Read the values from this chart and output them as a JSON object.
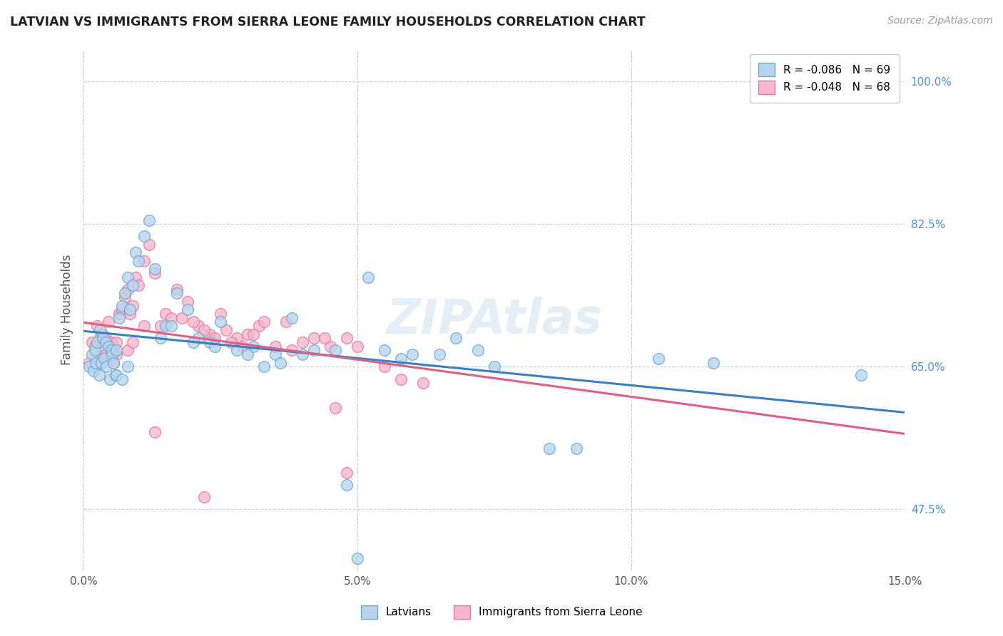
{
  "title": "LATVIAN VS IMMIGRANTS FROM SIERRA LEONE FAMILY HOUSEHOLDS CORRELATION CHART",
  "source": "Source: ZipAtlas.com",
  "ylabel": "Family Households",
  "xlim": [
    0.0,
    15.0
  ],
  "ylim": [
    40.0,
    104.0
  ],
  "xticks": [
    0.0,
    5.0,
    10.0,
    15.0
  ],
  "xticklabels": [
    "0.0%",
    "5.0%",
    "10.0%",
    "15.0%"
  ],
  "yticks": [
    47.5,
    65.0,
    82.5,
    100.0
  ],
  "yticklabels": [
    "47.5%",
    "65.0%",
    "82.5%",
    "100.0%"
  ],
  "latvian_color": "#b8d4ed",
  "sierra_leone_color": "#f4b8cc",
  "latvian_edge_color": "#6aaad4",
  "sierra_leone_edge_color": "#e87898",
  "latvian_line_color": "#3a7fc1",
  "sierra_leone_line_color": "#e06080",
  "background_color": "#ffffff",
  "grid_color": "#c0d0e0",
  "watermark_color": "#c8dff0",
  "latvian_x": [
    0.1,
    0.15,
    0.18,
    0.2,
    0.22,
    0.25,
    0.28,
    0.3,
    0.32,
    0.35,
    0.38,
    0.4,
    0.42,
    0.45,
    0.48,
    0.5,
    0.52,
    0.55,
    0.58,
    0.6,
    0.65,
    0.7,
    0.75,
    0.8,
    0.85,
    0.9,
    0.95,
    1.0,
    1.1,
    1.2,
    1.3,
    1.5,
    1.7,
    1.9,
    2.1,
    2.3,
    2.5,
    2.8,
    3.1,
    3.5,
    4.0,
    3.8,
    5.5,
    6.8,
    8.5,
    3.3,
    4.6,
    5.2,
    7.2,
    10.5,
    0.6,
    0.7,
    0.8,
    1.4,
    1.6,
    2.0,
    2.4,
    3.0,
    3.6,
    4.2,
    5.8,
    6.5,
    9.0,
    11.5,
    14.2,
    4.8,
    5.0,
    6.0,
    7.5
  ],
  "latvian_y": [
    65.0,
    66.5,
    64.5,
    67.0,
    65.5,
    68.0,
    64.0,
    69.5,
    65.5,
    68.5,
    66.0,
    68.0,
    65.0,
    67.5,
    63.5,
    67.0,
    66.5,
    65.5,
    64.0,
    67.0,
    71.0,
    72.5,
    74.0,
    76.0,
    72.0,
    75.0,
    79.0,
    78.0,
    81.0,
    83.0,
    77.0,
    70.0,
    74.0,
    72.0,
    68.5,
    68.0,
    70.5,
    67.0,
    67.5,
    66.5,
    66.5,
    71.0,
    67.0,
    68.5,
    55.0,
    65.0,
    67.0,
    76.0,
    67.0,
    66.0,
    64.0,
    63.5,
    65.0,
    68.5,
    70.0,
    68.0,
    67.5,
    66.5,
    65.5,
    67.0,
    66.0,
    66.5,
    55.0,
    65.5,
    64.0,
    50.5,
    41.5,
    66.5,
    65.0
  ],
  "sierra_leone_x": [
    0.1,
    0.15,
    0.2,
    0.25,
    0.28,
    0.3,
    0.32,
    0.35,
    0.38,
    0.4,
    0.42,
    0.45,
    0.5,
    0.52,
    0.55,
    0.6,
    0.65,
    0.7,
    0.75,
    0.8,
    0.85,
    0.9,
    0.95,
    1.0,
    1.1,
    1.2,
    1.3,
    1.5,
    1.7,
    1.9,
    2.1,
    2.3,
    2.5,
    2.8,
    3.0,
    3.2,
    3.5,
    3.8,
    4.0,
    4.5,
    2.0,
    1.4,
    1.6,
    2.2,
    2.7,
    3.3,
    4.2,
    5.0,
    0.6,
    0.8,
    1.8,
    2.6,
    3.7,
    4.8,
    5.5,
    6.2,
    2.4,
    3.1,
    4.4,
    5.8,
    0.9,
    1.1,
    2.9,
    4.6,
    0.55,
    1.3,
    2.2,
    4.8
  ],
  "sierra_leone_y": [
    65.5,
    68.0,
    67.5,
    70.0,
    66.0,
    68.5,
    65.5,
    69.0,
    67.0,
    68.5,
    66.5,
    70.5,
    68.0,
    67.0,
    67.5,
    68.0,
    71.5,
    72.0,
    73.5,
    74.5,
    71.5,
    72.5,
    76.0,
    75.0,
    78.0,
    80.0,
    76.5,
    71.5,
    74.5,
    73.0,
    70.0,
    69.0,
    71.5,
    68.5,
    69.0,
    70.0,
    67.5,
    67.0,
    68.0,
    67.5,
    70.5,
    70.0,
    71.0,
    69.5,
    68.0,
    70.5,
    68.5,
    67.5,
    66.5,
    67.0,
    71.0,
    69.5,
    70.5,
    68.5,
    65.0,
    63.0,
    68.5,
    69.0,
    68.5,
    63.5,
    68.0,
    70.0,
    67.5,
    60.0,
    65.5,
    57.0,
    49.0,
    52.0
  ]
}
